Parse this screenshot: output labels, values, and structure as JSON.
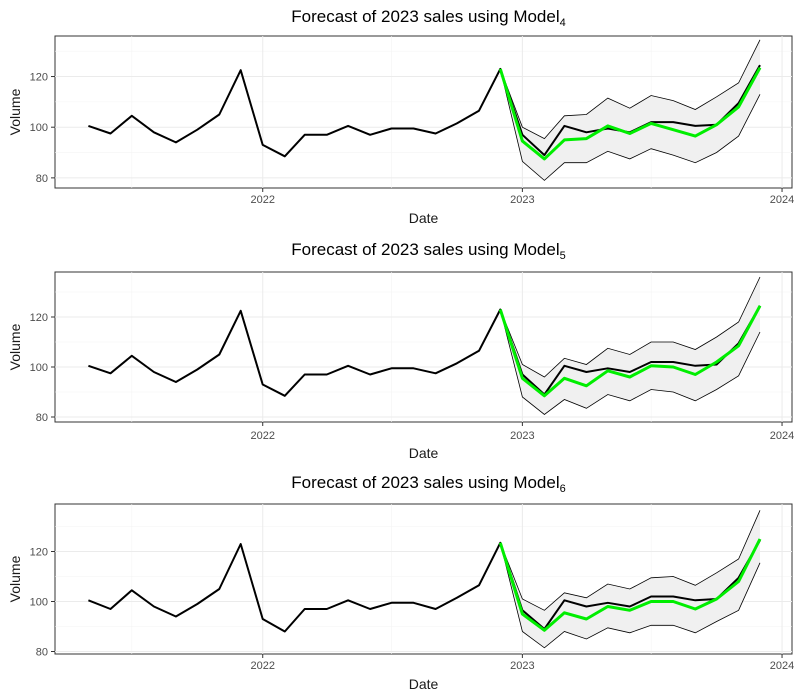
{
  "chart_data": [
    {
      "type": "line",
      "title": "Forecast of 2023 sales using Model",
      "title_subscript": "4",
      "xlabel": "Date",
      "ylabel": "Volume",
      "x_ticks": [
        "2022",
        "2023",
        "2024"
      ],
      "y_ticks": [
        "80",
        "100",
        "120"
      ],
      "ylim": [
        76,
        136
      ],
      "xlim": [
        "2021-03-15",
        "2024-01-15"
      ],
      "grid": true,
      "colors": {
        "actual": "#000000",
        "forecast": "#00ee00",
        "ribbon": "#f0f0f0",
        "bounds": "#000000"
      },
      "series": [
        {
          "role": "actual",
          "x": [
            "2021-05-01",
            "2021-06-01",
            "2021-07-01",
            "2021-08-01",
            "2021-09-01",
            "2021-10-01",
            "2021-11-01",
            "2021-12-01",
            "2022-01-01",
            "2022-02-01",
            "2022-03-01",
            "2022-04-01",
            "2022-05-01",
            "2022-06-01",
            "2022-07-01",
            "2022-08-01",
            "2022-09-01",
            "2022-10-01",
            "2022-11-01",
            "2022-12-01",
            "2023-01-01",
            "2023-02-01",
            "2023-03-01",
            "2023-04-01",
            "2023-05-01",
            "2023-06-01",
            "2023-07-01",
            "2023-08-01",
            "2023-09-01",
            "2023-10-01",
            "2023-11-01",
            "2023-12-01"
          ],
          "values": [
            100.5,
            97.5,
            104.5,
            98,
            94,
            99,
            105,
            122.5,
            93,
            88.5,
            97,
            97,
            100.5,
            97,
            99.5,
            99.5,
            97.5,
            101.5,
            106.5,
            123,
            97,
            89,
            100.5,
            98,
            99.5,
            98,
            102,
            102,
            100.5,
            101,
            109.5,
            124.5
          ]
        },
        {
          "role": "forecast",
          "x": [
            "2022-12-01",
            "2023-01-01",
            "2023-02-01",
            "2023-03-01",
            "2023-04-01",
            "2023-05-01",
            "2023-06-01",
            "2023-07-01",
            "2023-08-01",
            "2023-09-01",
            "2023-10-01",
            "2023-11-01",
            "2023-12-01"
          ],
          "values": [
            123,
            94.5,
            87.5,
            95,
            95.5,
            100.5,
            97.5,
            101.5,
            99,
            96.5,
            101,
            108,
            123.5
          ]
        },
        {
          "role": "upper",
          "x": [
            "2022-12-01",
            "2023-01-01",
            "2023-02-01",
            "2023-03-01",
            "2023-04-01",
            "2023-05-01",
            "2023-06-01",
            "2023-07-01",
            "2023-08-01",
            "2023-09-01",
            "2023-10-01",
            "2023-11-01",
            "2023-12-01"
          ],
          "values": [
            123,
            100,
            95.5,
            104.5,
            105,
            111.5,
            107.5,
            112.5,
            110.5,
            107,
            112,
            117.5,
            134.5
          ]
        },
        {
          "role": "lower",
          "x": [
            "2022-12-01",
            "2023-01-01",
            "2023-02-01",
            "2023-03-01",
            "2023-04-01",
            "2023-05-01",
            "2023-06-01",
            "2023-07-01",
            "2023-08-01",
            "2023-09-01",
            "2023-10-01",
            "2023-11-01",
            "2023-12-01"
          ],
          "values": [
            123,
            86.5,
            79,
            86,
            86,
            90.5,
            87.5,
            91.5,
            89,
            86,
            90,
            96.5,
            113
          ]
        }
      ]
    },
    {
      "type": "line",
      "title": "Forecast of 2023 sales using Model",
      "title_subscript": "5",
      "xlabel": "Date",
      "ylabel": "Volume",
      "x_ticks": [
        "2022",
        "2023",
        "2024"
      ],
      "y_ticks": [
        "80",
        "100",
        "120"
      ],
      "ylim": [
        78,
        138
      ],
      "xlim": [
        "2021-03-15",
        "2024-01-15"
      ],
      "grid": true,
      "colors": {
        "actual": "#000000",
        "forecast": "#00ee00",
        "ribbon": "#f0f0f0",
        "bounds": "#000000"
      },
      "series": [
        {
          "role": "actual",
          "x": [
            "2021-05-01",
            "2021-06-01",
            "2021-07-01",
            "2021-08-01",
            "2021-09-01",
            "2021-10-01",
            "2021-11-01",
            "2021-12-01",
            "2022-01-01",
            "2022-02-01",
            "2022-03-01",
            "2022-04-01",
            "2022-05-01",
            "2022-06-01",
            "2022-07-01",
            "2022-08-01",
            "2022-09-01",
            "2022-10-01",
            "2022-11-01",
            "2022-12-01",
            "2023-01-01",
            "2023-02-01",
            "2023-03-01",
            "2023-04-01",
            "2023-05-01",
            "2023-06-01",
            "2023-07-01",
            "2023-08-01",
            "2023-09-01",
            "2023-10-01",
            "2023-11-01",
            "2023-12-01"
          ],
          "values": [
            100.5,
            97.5,
            104.5,
            98,
            94,
            99,
            105,
            122.5,
            93,
            88.5,
            97,
            97,
            100.5,
            97,
            99.5,
            99.5,
            97.5,
            101.5,
            106.5,
            123,
            97,
            89,
            100.5,
            98,
            99.5,
            98,
            102,
            102,
            100.5,
            101,
            109.5,
            124.5
          ]
        },
        {
          "role": "forecast",
          "x": [
            "2022-12-01",
            "2023-01-01",
            "2023-02-01",
            "2023-03-01",
            "2023-04-01",
            "2023-05-01",
            "2023-06-01",
            "2023-07-01",
            "2023-08-01",
            "2023-09-01",
            "2023-10-01",
            "2023-11-01",
            "2023-12-01"
          ],
          "values": [
            123,
            95.5,
            88.5,
            95.5,
            92.5,
            98.5,
            96,
            100.5,
            100,
            97,
            102,
            108.5,
            124.5
          ]
        },
        {
          "role": "upper",
          "x": [
            "2022-12-01",
            "2023-01-01",
            "2023-02-01",
            "2023-03-01",
            "2023-04-01",
            "2023-05-01",
            "2023-06-01",
            "2023-07-01",
            "2023-08-01",
            "2023-09-01",
            "2023-10-01",
            "2023-11-01",
            "2023-12-01"
          ],
          "values": [
            123,
            101,
            96,
            103.5,
            101,
            107.5,
            105,
            110,
            110,
            107,
            112,
            118,
            136
          ]
        },
        {
          "role": "lower",
          "x": [
            "2022-12-01",
            "2023-01-01",
            "2023-02-01",
            "2023-03-01",
            "2023-04-01",
            "2023-05-01",
            "2023-06-01",
            "2023-07-01",
            "2023-08-01",
            "2023-09-01",
            "2023-10-01",
            "2023-11-01",
            "2023-12-01"
          ],
          "values": [
            123,
            88,
            81,
            87,
            83.5,
            89,
            86.5,
            91,
            90,
            86.5,
            91,
            96.5,
            114
          ]
        }
      ]
    },
    {
      "type": "line",
      "title": "Forecast of 2023 sales using Model",
      "title_subscript": "6",
      "xlabel": "Date",
      "ylabel": "Volume",
      "x_ticks": [
        "2022",
        "2023",
        "2024"
      ],
      "y_ticks": [
        "80",
        "100",
        "120"
      ],
      "ylim": [
        79,
        139
      ],
      "xlim": [
        "2021-03-15",
        "2024-01-15"
      ],
      "grid": true,
      "colors": {
        "actual": "#000000",
        "forecast": "#00ee00",
        "ribbon": "#f0f0f0",
        "bounds": "#000000"
      },
      "series": [
        {
          "role": "actual",
          "x": [
            "2021-05-01",
            "2021-06-01",
            "2021-07-01",
            "2021-08-01",
            "2021-09-01",
            "2021-10-01",
            "2021-11-01",
            "2021-12-01",
            "2022-01-01",
            "2022-02-01",
            "2022-03-01",
            "2022-04-01",
            "2022-05-01",
            "2022-06-01",
            "2022-07-01",
            "2022-08-01",
            "2022-09-01",
            "2022-10-01",
            "2022-11-01",
            "2022-12-01",
            "2023-01-01",
            "2023-02-01",
            "2023-03-01",
            "2023-04-01",
            "2023-05-01",
            "2023-06-01",
            "2023-07-01",
            "2023-08-01",
            "2023-09-01",
            "2023-10-01",
            "2023-11-01",
            "2023-12-01"
          ],
          "values": [
            100.5,
            97,
            104.5,
            98,
            94,
            99,
            105,
            123,
            93,
            88,
            97,
            97,
            100.5,
            97,
            99.5,
            99.5,
            97,
            101.5,
            106.5,
            123.5,
            96.5,
            89,
            100.5,
            98,
            99.5,
            98,
            102,
            102,
            100.5,
            101,
            109.5,
            124.5
          ]
        },
        {
          "role": "forecast",
          "x": [
            "2022-12-01",
            "2023-01-01",
            "2023-02-01",
            "2023-03-01",
            "2023-04-01",
            "2023-05-01",
            "2023-06-01",
            "2023-07-01",
            "2023-08-01",
            "2023-09-01",
            "2023-10-01",
            "2023-11-01",
            "2023-12-01"
          ],
          "values": [
            123.5,
            95,
            88.5,
            95.5,
            93,
            98,
            96.5,
            100,
            100,
            97,
            101,
            108,
            125
          ]
        },
        {
          "role": "upper",
          "x": [
            "2022-12-01",
            "2023-01-01",
            "2023-02-01",
            "2023-03-01",
            "2023-04-01",
            "2023-05-01",
            "2023-06-01",
            "2023-07-01",
            "2023-08-01",
            "2023-09-01",
            "2023-10-01",
            "2023-11-01",
            "2023-12-01"
          ],
          "values": [
            123.5,
            101,
            96.5,
            103.5,
            101.5,
            107,
            105,
            109.5,
            110,
            106.5,
            111.5,
            117,
            136.5
          ]
        },
        {
          "role": "lower",
          "x": [
            "2022-12-01",
            "2023-01-01",
            "2023-02-01",
            "2023-03-01",
            "2023-04-01",
            "2023-05-01",
            "2023-06-01",
            "2023-07-01",
            "2023-08-01",
            "2023-09-01",
            "2023-10-01",
            "2023-11-01",
            "2023-12-01"
          ],
          "values": [
            123.5,
            88,
            81.5,
            88,
            85,
            89.5,
            87.5,
            90.5,
            90.5,
            87.5,
            92,
            96.5,
            115.5
          ]
        }
      ]
    }
  ]
}
